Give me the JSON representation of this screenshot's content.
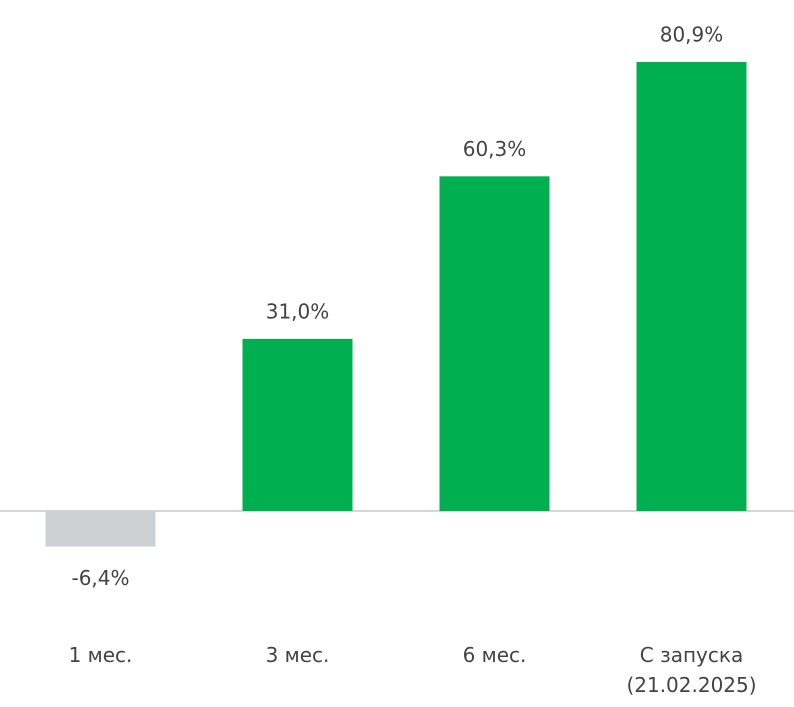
{
  "chart_data": {
    "type": "bar",
    "categories": [
      "1 мес.",
      "3 мес.",
      "6 мес.",
      "С запуска (21.02.2025)"
    ],
    "values": [
      -6.4,
      31.0,
      60.3,
      80.9
    ],
    "value_labels": [
      "-6,4%",
      "31,0%",
      "60,3%",
      "80,9%"
    ],
    "colors": [
      "#cdd0d3",
      "#00b050",
      "#00b050",
      "#00b050"
    ]
  }
}
